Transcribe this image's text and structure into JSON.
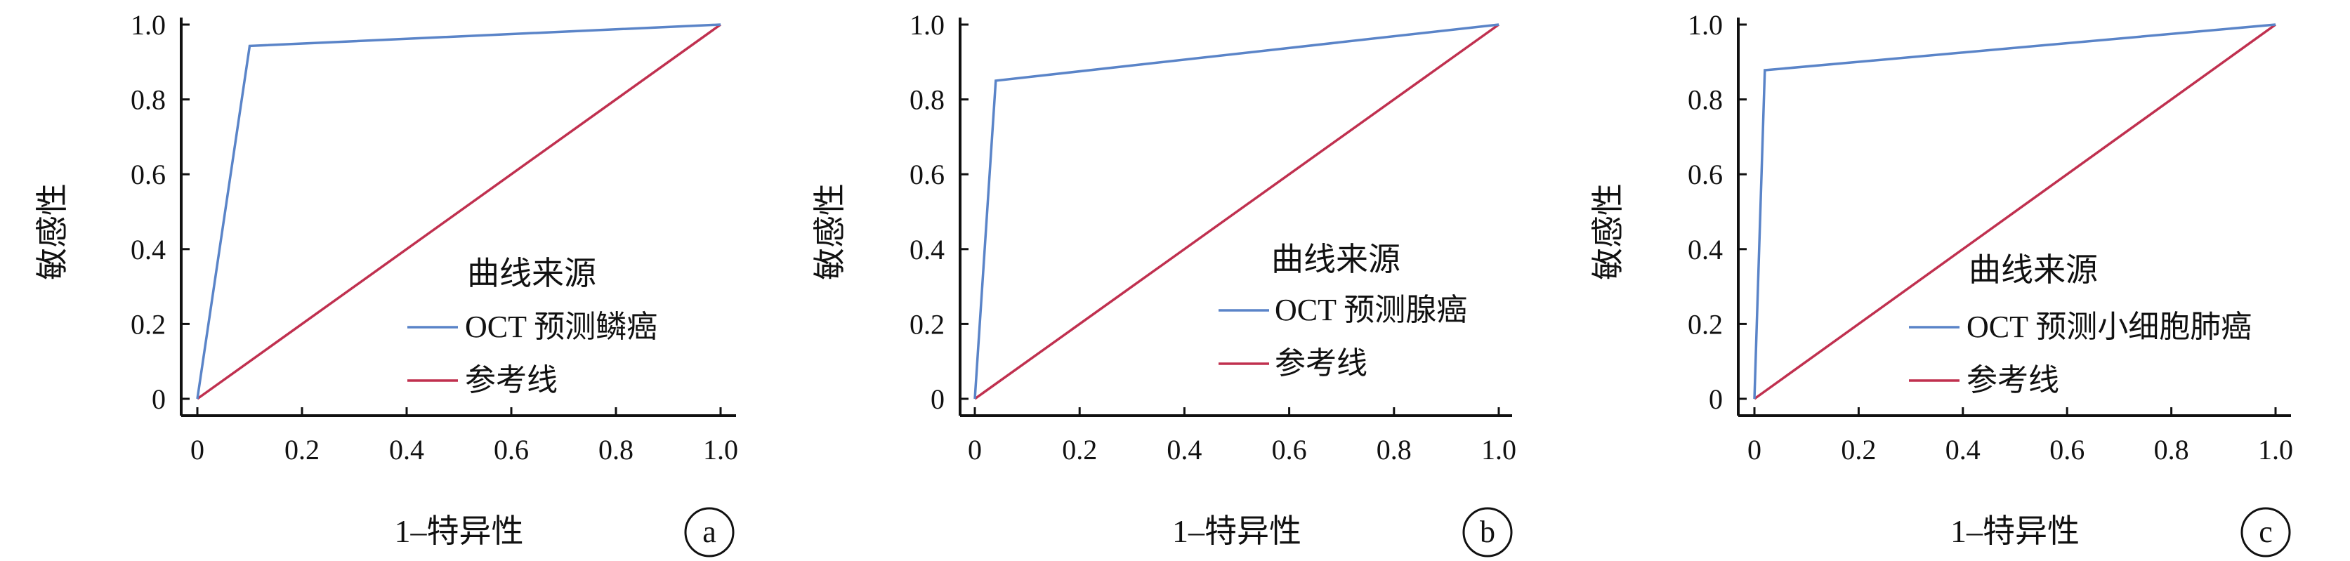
{
  "colors": {
    "roc_line": "#5a84c8",
    "reference_line": "#c0304f",
    "axis": "#111111"
  },
  "chart_data": [
    {
      "type": "line",
      "panel_label": "a",
      "xlabel": "1–特异性",
      "ylabel": "敏感性",
      "xlim": [
        0,
        1
      ],
      "ylim": [
        0,
        1
      ],
      "x_ticks": [
        "0",
        "0.2",
        "0.4",
        "0.6",
        "0.8",
        "1.0"
      ],
      "y_ticks": [
        "0",
        "0.2",
        "0.4",
        "0.6",
        "0.8",
        "1.0"
      ],
      "grid": false,
      "legend_title": "曲线来源",
      "legend_position": "center-right",
      "series": [
        {
          "name": "OCT 预测鳞癌",
          "color": "#5a84c8",
          "x": [
            0,
            0.1,
            1.0
          ],
          "y": [
            0,
            0.943,
            1.0
          ]
        },
        {
          "name": "参考线",
          "color": "#c0304f",
          "x": [
            0,
            1.0
          ],
          "y": [
            0,
            1.0
          ]
        }
      ]
    },
    {
      "type": "line",
      "panel_label": "b",
      "xlabel": "1–特异性",
      "ylabel": "敏感性",
      "xlim": [
        0,
        1
      ],
      "ylim": [
        0,
        1
      ],
      "x_ticks": [
        "0",
        "0.2",
        "0.4",
        "0.6",
        "0.8",
        "1.0"
      ],
      "y_ticks": [
        "0",
        "0.2",
        "0.4",
        "0.6",
        "0.8",
        "1.0"
      ],
      "grid": false,
      "legend_title": "曲线来源",
      "legend_position": "center-right",
      "series": [
        {
          "name": "OCT 预测腺癌",
          "color": "#5a84c8",
          "x": [
            0,
            0.04,
            1.0
          ],
          "y": [
            0,
            0.85,
            1.0
          ]
        },
        {
          "name": "参考线",
          "color": "#c0304f",
          "x": [
            0,
            1.0
          ],
          "y": [
            0,
            1.0
          ]
        }
      ]
    },
    {
      "type": "line",
      "panel_label": "c",
      "xlabel": "1–特异性",
      "ylabel": "敏感性",
      "xlim": [
        0,
        1
      ],
      "ylim": [
        0,
        1
      ],
      "x_ticks": [
        "0",
        "0.2",
        "0.4",
        "0.6",
        "0.8",
        "1.0"
      ],
      "y_ticks": [
        "0",
        "0.2",
        "0.4",
        "0.6",
        "0.8",
        "1.0"
      ],
      "grid": false,
      "legend_title": "曲线来源",
      "legend_position": "center-right",
      "series": [
        {
          "name": "OCT 预测小细胞肺癌",
          "color": "#5a84c8",
          "x": [
            0,
            0.02,
            1.0
          ],
          "y": [
            0,
            0.878,
            1.0
          ]
        },
        {
          "name": "参考线",
          "color": "#c0304f",
          "x": [
            0,
            1.0
          ],
          "y": [
            0,
            1.0
          ]
        }
      ]
    }
  ]
}
